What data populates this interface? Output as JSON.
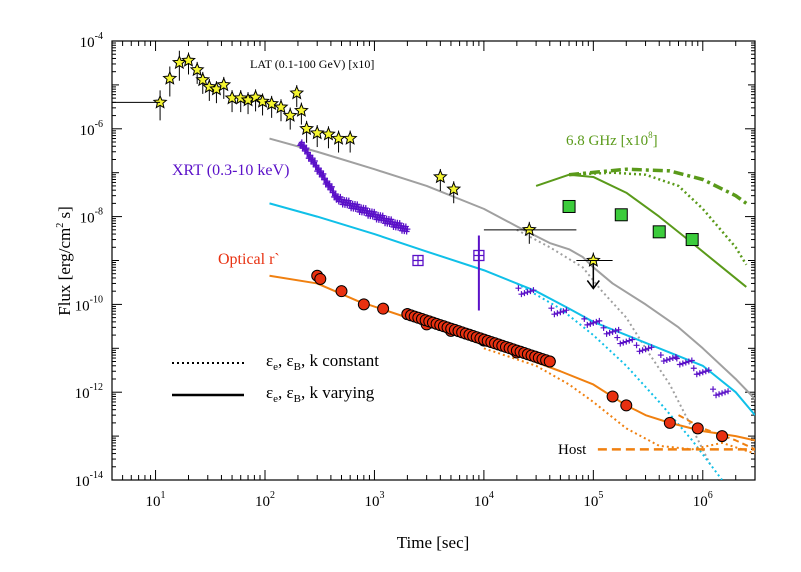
{
  "chart_data": {
    "type": "scatter",
    "xlabel": "Time [sec]",
    "ylabel": "Flux [erg/cm² s]",
    "ylabel_parts": {
      "pre": "Flux [erg/cm",
      "sup": "2",
      "post": " s]"
    },
    "x_scale": "log",
    "y_scale": "log",
    "xlim": [
      4,
      3000000
    ],
    "ylim": [
      1e-14,
      0.0001
    ],
    "x_ticks": [
      {
        "base": "10",
        "exp": "1",
        "value": 10
      },
      {
        "base": "10",
        "exp": "2",
        "value": 100
      },
      {
        "base": "10",
        "exp": "3",
        "value": 1000
      },
      {
        "base": "10",
        "exp": "4",
        "value": 10000
      },
      {
        "base": "10",
        "exp": "5",
        "value": 100000
      },
      {
        "base": "10",
        "exp": "6",
        "value": 1000000
      }
    ],
    "y_ticks": [
      {
        "base": "10",
        "exp": "-14",
        "value": 1e-14
      },
      {
        "base": "10",
        "exp": "-12",
        "value": 1e-12
      },
      {
        "base": "10",
        "exp": "-10",
        "value": 1e-10
      },
      {
        "base": "10",
        "exp": "-8",
        "value": 1e-08
      },
      {
        "base": "10",
        "exp": "-6",
        "value": 1e-06
      },
      {
        "base": "10",
        "exp": "-4",
        "value": 0.0001
      }
    ],
    "annotations": {
      "lat": "LAT (0.1-100 GeV) [x10]",
      "xrt": "XRT (0.3-10 keV)",
      "radio_pre": "6.8 GHz [x10",
      "radio_sup": "8",
      "radio_post": "]",
      "optical": "Optical r`",
      "host": "Host"
    },
    "legend": [
      {
        "style": "dotted",
        "eps": "ε",
        "sub_e": "e",
        "sub_b": "B",
        "text": ", k constant"
      },
      {
        "style": "solid",
        "eps": "ε",
        "sub_e": "e",
        "sub_b": "B",
        "text": ", k varying"
      }
    ],
    "colors": {
      "lat": "#f5f530",
      "xrt": "#5a10c8",
      "optical": "#e83010",
      "radio": "#5a9a1a",
      "gray": "#a0a0a0",
      "cyan": "#10c0e8",
      "orange": "#f08010"
    },
    "series": [
      {
        "name": "LAT",
        "points": [
          [
            11,
            4e-06
          ],
          [
            13.5,
            1.4e-05
          ],
          [
            16.5,
            3.2e-05
          ],
          [
            20,
            3.6e-05
          ],
          [
            24,
            2.2e-05
          ],
          [
            27,
            1.3e-05
          ],
          [
            31,
            9e-06
          ],
          [
            36,
            8e-06
          ],
          [
            42,
            1e-05
          ],
          [
            50,
            5e-06
          ],
          [
            60,
            5e-06
          ],
          [
            70,
            4.5e-06
          ],
          [
            82,
            5.2e-06
          ],
          [
            95,
            4.2e-06
          ],
          [
            115,
            3.7e-06
          ],
          [
            140,
            3.1e-06
          ],
          [
            170,
            2e-06
          ],
          [
            195,
            6.5e-06
          ],
          [
            215,
            2.6e-06
          ],
          [
            240,
            1e-06
          ],
          [
            300,
            8e-07
          ],
          [
            380,
            7.5e-07
          ],
          [
            470,
            6e-07
          ],
          [
            600,
            6e-07
          ],
          [
            4000,
            8e-08
          ],
          [
            5300,
            4.2e-08
          ],
          [
            26000,
            5e-09
          ],
          [
            100000,
            1e-09
          ]
        ]
      },
      {
        "name": "XRT",
        "x_range": [
          210,
          2000
        ],
        "y_range": [
          5e-07,
          5e-09
        ]
      },
      {
        "name": "XRT late",
        "points": [
          [
            2500,
            1e-09
          ],
          [
            9000,
            1.3e-09
          ],
          [
            25000,
            2e-10
          ],
          [
            50000,
            7e-11
          ],
          [
            100000,
            4e-11
          ],
          [
            150000,
            2.5e-11
          ],
          [
            200000,
            1.5e-11
          ],
          [
            300000,
            1e-11
          ],
          [
            500000,
            6e-12
          ],
          [
            700000,
            5e-12
          ],
          [
            1000000,
            3e-12
          ],
          [
            1500000,
            1e-12
          ]
        ]
      },
      {
        "name": "Optical r`",
        "points": [
          [
            300,
            4.5e-10
          ],
          [
            320,
            3.8e-10
          ],
          [
            500,
            2e-10
          ],
          [
            800,
            1e-10
          ],
          [
            1200,
            8e-11
          ],
          [
            2000,
            6e-11
          ],
          [
            3000,
            3.5e-11
          ],
          [
            5000,
            2.5e-11
          ],
          [
            10000,
            1.5e-11
          ],
          [
            20000,
            8e-12
          ],
          [
            40000,
            5e-12
          ],
          [
            150000,
            8e-13
          ],
          [
            200000,
            5e-13
          ],
          [
            500000,
            2e-13
          ],
          [
            900000,
            1.5e-13
          ],
          [
            1500000,
            1e-13
          ]
        ]
      },
      {
        "name": "6.8 GHz",
        "points": [
          [
            60000,
            1.7e-08
          ],
          [
            180000,
            1.1e-08
          ],
          [
            400000,
            4.5e-09
          ],
          [
            800000,
            3e-09
          ]
        ]
      }
    ]
  }
}
